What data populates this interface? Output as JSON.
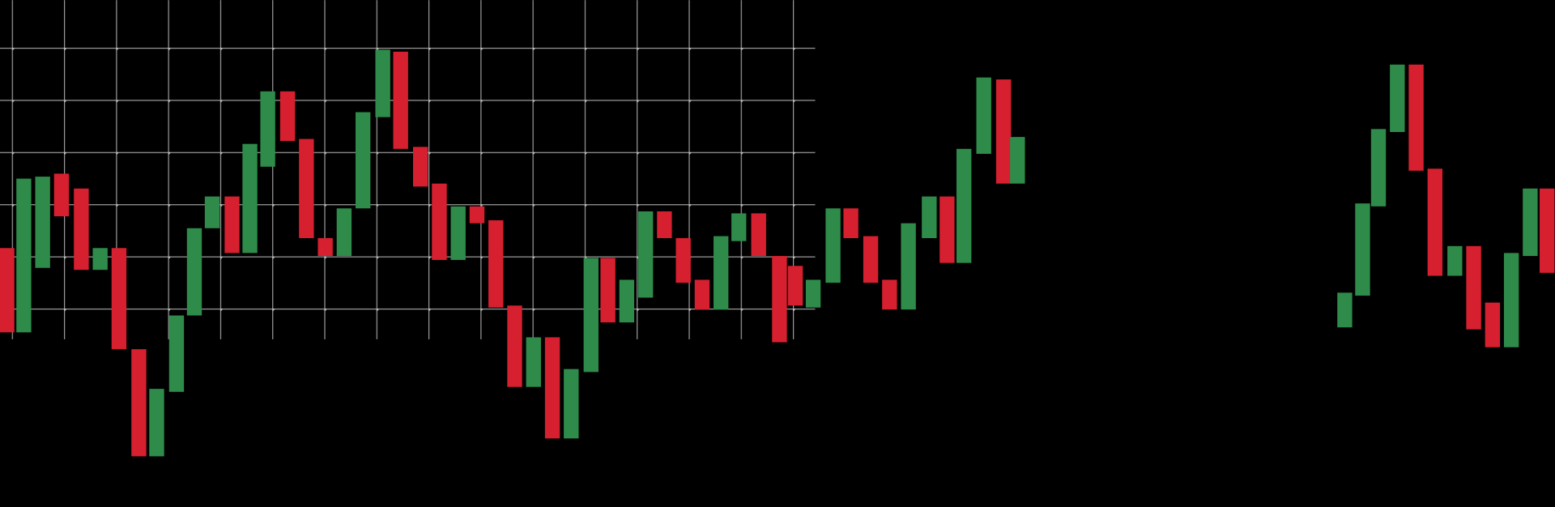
{
  "chart_data": {
    "type": "candlestick",
    "x": [
      7,
      24,
      43,
      62,
      82,
      101,
      120,
      140,
      158,
      178,
      196,
      214,
      234,
      252,
      270,
      290,
      309,
      328,
      347,
      366,
      386,
      404,
      424,
      443,
      462,
      481,
      500,
      519,
      538,
      557,
      576,
      596,
      613,
      632,
      651,
      670,
      689,
      708,
      727,
      745,
      765,
      786,
      802,
      820,
      840,
      858,
      878,
      897,
      916,
      937,
      955,
      972,
      992,
      1012,
      1026,
      1356,
      1374,
      1390,
      1409,
      1428,
      1447,
      1467,
      1486,
      1505,
      1524,
      1543,
      1560
    ],
    "open": [
      261,
      176,
      241,
      336,
      321,
      239,
      261,
      159,
      51,
      116,
      193,
      281,
      313,
      256,
      343,
      419,
      371,
      271,
      253,
      301,
      393,
      459,
      363,
      326,
      249,
      303,
      289,
      203,
      121,
      171,
      69,
      136,
      251,
      186,
      211,
      298,
      271,
      229,
      199,
      268,
      296,
      253,
      243,
      201,
      226,
      301,
      273,
      229,
      199,
      271,
      313,
      246,
      356,
      431,
      326,
      181,
      213,
      303,
      378,
      446,
      341,
      233,
      263,
      206,
      161,
      253,
      321
    ],
    "close": [
      176,
      331,
      333,
      293,
      239,
      261,
      159,
      51,
      119,
      193,
      281,
      313,
      256,
      366,
      419,
      369,
      271,
      253,
      301,
      398,
      461,
      361,
      323,
      249,
      303,
      286,
      201,
      121,
      171,
      69,
      139,
      251,
      186,
      229,
      298,
      271,
      226,
      199,
      273,
      296,
      253,
      166,
      203,
      229,
      301,
      271,
      226,
      199,
      286,
      313,
      246,
      361,
      433,
      326,
      373,
      216,
      306,
      381,
      446,
      339,
      233,
      263,
      179,
      161,
      256,
      321,
      236
    ],
    "xlim": [
      0,
      1568
    ],
    "ylim": [
      0,
      511
    ],
    "up_color": "#2e8b4a",
    "down_color": "#d6202f",
    "grid": true
  }
}
